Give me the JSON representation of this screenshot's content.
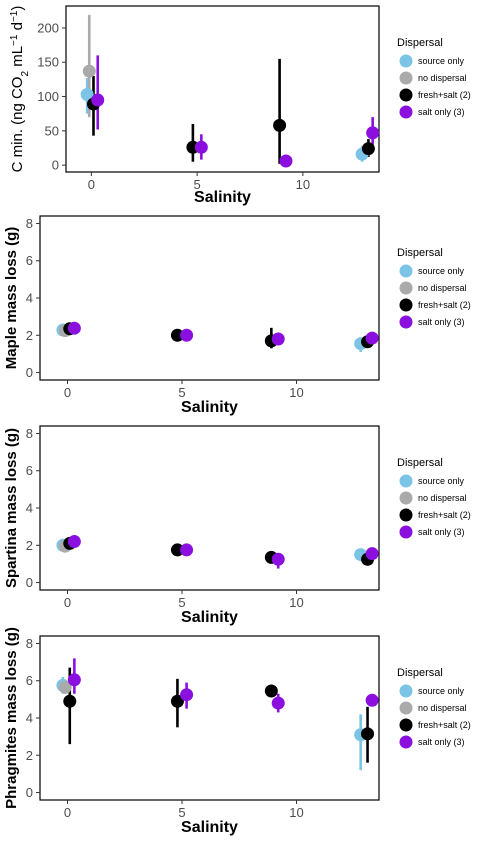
{
  "legend": {
    "title": "Dispersal",
    "entries": [
      {
        "label": "source only",
        "color": "#7BC4E6"
      },
      {
        "label": "no dispersal",
        "color": "#AAAAAA"
      },
      {
        "label": "fresh+salt (2)",
        "color": "#000000"
      },
      {
        "label": "salt only (3)",
        "color": "#8B10E0"
      }
    ]
  },
  "chart_data": [
    {
      "type": "scatter",
      "xlabel": "Salinity",
      "ylabel_prefix": "C min. (ng CO",
      "ylabel_sub": "2",
      "ylabel_mid": " mL",
      "ylabel_sup1": "−1",
      "ylabel_mid2": " d",
      "ylabel_sup2": "−1",
      "ylabel_suffix": ")",
      "xlim": [
        -1.2,
        13.6
      ],
      "ylim": [
        -10,
        232
      ],
      "xticks": [
        0,
        5,
        10
      ],
      "yticks": [
        0,
        50,
        100,
        150,
        200
      ],
      "series": [
        {
          "name": "source only",
          "points": [
            {
              "x": -0.2,
              "y": 103,
              "lo": 75,
              "hi": 127
            },
            {
              "x": 12.8,
              "y": 16,
              "lo": 5,
              "hi": 28
            }
          ]
        },
        {
          "name": "no dispersal",
          "points": [
            {
              "x": -0.1,
              "y": 137,
              "lo": 70,
              "hi": 219
            }
          ]
        },
        {
          "name": "fresh+salt (2)",
          "points": [
            {
              "x": 0.1,
              "y": 89,
              "lo": 43,
              "hi": 130
            },
            {
              "x": 4.8,
              "y": 26,
              "lo": 5,
              "hi": 60
            },
            {
              "x": 8.9,
              "y": 58,
              "lo": 2,
              "hi": 155
            },
            {
              "x": 13.1,
              "y": 24,
              "lo": 12,
              "hi": 38
            }
          ]
        },
        {
          "name": "salt only (3)",
          "points": [
            {
              "x": 0.3,
              "y": 95,
              "lo": 52,
              "hi": 160
            },
            {
              "x": 5.2,
              "y": 26,
              "lo": 8,
              "hi": 45
            },
            {
              "x": 9.2,
              "y": 6,
              "lo": 4,
              "hi": 8
            },
            {
              "x": 13.3,
              "y": 47,
              "lo": 30,
              "hi": 70
            }
          ]
        }
      ]
    },
    {
      "type": "scatter",
      "xlabel": "Salinity",
      "ylabel": "Maple mass loss (g)",
      "xlim": [
        -1.2,
        13.6
      ],
      "ylim": [
        -0.4,
        8.4
      ],
      "xticks": [
        0,
        5,
        10
      ],
      "yticks": [
        0,
        2,
        4,
        6,
        8
      ],
      "series": [
        {
          "name": "source only",
          "points": [
            {
              "x": -0.2,
              "y": 2.28,
              "lo": 2.1,
              "hi": 2.45
            },
            {
              "x": 12.8,
              "y": 1.55,
              "lo": 1.1,
              "hi": 1.85
            }
          ]
        },
        {
          "name": "no dispersal",
          "points": [
            {
              "x": -0.1,
              "y": 2.25,
              "lo": 2.1,
              "hi": 2.4
            }
          ]
        },
        {
          "name": "fresh+salt (2)",
          "points": [
            {
              "x": 0.1,
              "y": 2.35,
              "lo": 2.2,
              "hi": 2.5
            },
            {
              "x": 4.8,
              "y": 2.0,
              "lo": 1.9,
              "hi": 2.1
            },
            {
              "x": 8.9,
              "y": 1.7,
              "lo": 1.3,
              "hi": 2.4
            },
            {
              "x": 13.1,
              "y": 1.65,
              "lo": 1.4,
              "hi": 1.9
            }
          ]
        },
        {
          "name": "salt only (3)",
          "points": [
            {
              "x": 0.3,
              "y": 2.38,
              "lo": 2.25,
              "hi": 2.5
            },
            {
              "x": 5.2,
              "y": 2.0,
              "lo": 1.9,
              "hi": 2.1
            },
            {
              "x": 9.2,
              "y": 1.8,
              "lo": 1.7,
              "hi": 1.9
            },
            {
              "x": 13.3,
              "y": 1.85,
              "lo": 1.7,
              "hi": 2.0
            }
          ]
        }
      ]
    },
    {
      "type": "scatter",
      "xlabel": "Salinity",
      "ylabel": "Spartina mass loss (g)",
      "xlim": [
        -1.2,
        13.6
      ],
      "ylim": [
        -0.4,
        8.4
      ],
      "xticks": [
        0,
        5,
        10
      ],
      "yticks": [
        0,
        2,
        4,
        6,
        8
      ],
      "series": [
        {
          "name": "source only",
          "points": [
            {
              "x": -0.2,
              "y": 2.0,
              "lo": 1.85,
              "hi": 2.15
            },
            {
              "x": 12.8,
              "y": 1.5,
              "lo": 1.3,
              "hi": 1.7
            }
          ]
        },
        {
          "name": "no dispersal",
          "points": [
            {
              "x": -0.1,
              "y": 1.95,
              "lo": 1.85,
              "hi": 2.05
            }
          ]
        },
        {
          "name": "fresh+salt (2)",
          "points": [
            {
              "x": 0.1,
              "y": 2.1,
              "lo": 1.95,
              "hi": 2.25
            },
            {
              "x": 4.8,
              "y": 1.75,
              "lo": 1.65,
              "hi": 1.85
            },
            {
              "x": 8.9,
              "y": 1.35,
              "lo": 1.2,
              "hi": 1.5
            },
            {
              "x": 13.1,
              "y": 1.25,
              "lo": 1.1,
              "hi": 1.4
            }
          ]
        },
        {
          "name": "salt only (3)",
          "points": [
            {
              "x": 0.3,
              "y": 2.2,
              "lo": 2.05,
              "hi": 2.35
            },
            {
              "x": 5.2,
              "y": 1.75,
              "lo": 1.65,
              "hi": 1.85
            },
            {
              "x": 9.2,
              "y": 1.25,
              "lo": 0.75,
              "hi": 1.55
            },
            {
              "x": 13.3,
              "y": 1.55,
              "lo": 1.4,
              "hi": 1.7
            }
          ]
        }
      ]
    },
    {
      "type": "scatter",
      "xlabel": "Salinity",
      "ylabel": "Phragmites mass loss (g)",
      "xlim": [
        -1.2,
        13.6
      ],
      "ylim": [
        -0.4,
        8.4
      ],
      "xticks": [
        0,
        5,
        10
      ],
      "yticks": [
        0,
        2,
        4,
        6,
        8
      ],
      "series": [
        {
          "name": "source only",
          "points": [
            {
              "x": -0.2,
              "y": 5.75,
              "lo": 5.3,
              "hi": 6.2
            },
            {
              "x": 12.8,
              "y": 3.1,
              "lo": 1.2,
              "hi": 4.2
            }
          ]
        },
        {
          "name": "no dispersal",
          "points": [
            {
              "x": -0.1,
              "y": 5.65,
              "lo": 5.3,
              "hi": 6.0
            }
          ]
        },
        {
          "name": "fresh+salt (2)",
          "points": [
            {
              "x": 0.1,
              "y": 4.9,
              "lo": 2.6,
              "hi": 6.7
            },
            {
              "x": 4.8,
              "y": 4.9,
              "lo": 3.5,
              "hi": 6.1
            },
            {
              "x": 8.9,
              "y": 5.45,
              "lo": 5.3,
              "hi": 5.6
            },
            {
              "x": 13.1,
              "y": 3.15,
              "lo": 1.6,
              "hi": 4.6
            }
          ]
        },
        {
          "name": "salt only (3)",
          "points": [
            {
              "x": 0.3,
              "y": 6.05,
              "lo": 5.3,
              "hi": 7.2
            },
            {
              "x": 5.2,
              "y": 5.25,
              "lo": 4.5,
              "hi": 5.9
            },
            {
              "x": 9.2,
              "y": 4.8,
              "lo": 4.3,
              "hi": 5.3
            },
            {
              "x": 13.3,
              "y": 4.95,
              "lo": 4.7,
              "hi": 5.2
            }
          ]
        }
      ]
    }
  ]
}
